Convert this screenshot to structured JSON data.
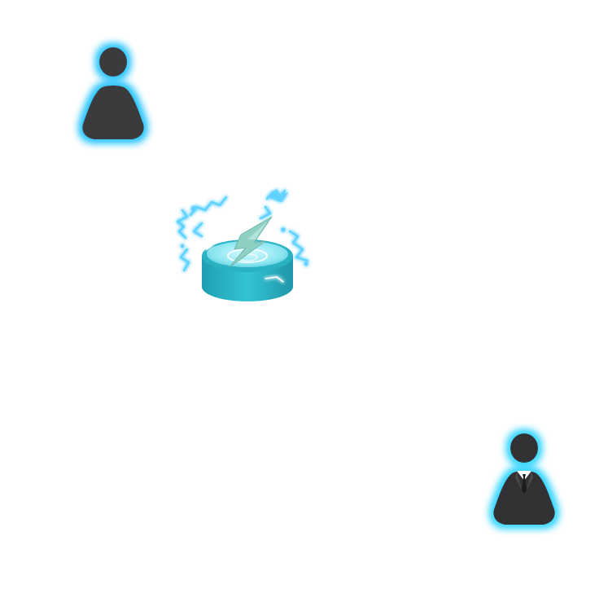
{
  "scene": {
    "background": "#ffffff",
    "glow_color": "#2fc6ff",
    "avatar_color": "#3a3a3c"
  },
  "entities": [
    {
      "id": "player-1",
      "kind": "avatar",
      "icon": "person-icon",
      "attire": "plain"
    },
    {
      "id": "player-2",
      "kind": "avatar",
      "icon": "person-suit-icon",
      "attire": "suit-and-tie"
    },
    {
      "id": "electric-pad",
      "kind": "item",
      "icon": "lightning-pad-icon",
      "color": "#2bb8c9"
    }
  ]
}
